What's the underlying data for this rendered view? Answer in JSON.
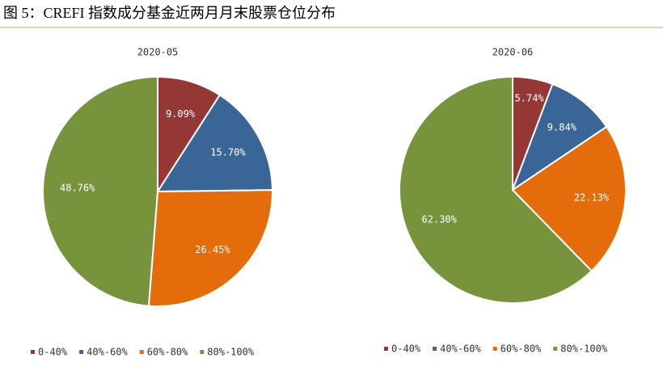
{
  "title": "图 5：CREFI 指数成分基金近两月月末股票仓位分布",
  "chart_data": [
    {
      "type": "pie",
      "title": "2020-05",
      "categories": [
        "0-40%",
        "40%-60%",
        "60%-80%",
        "80%-100%"
      ],
      "values": [
        9.09,
        15.7,
        26.45,
        48.76
      ],
      "value_labels": [
        "9.09%",
        "15.70%",
        "26.45%",
        "48.76%"
      ],
      "colors": [
        "#953735",
        "#3a6597",
        "#e46c0a",
        "#77933c"
      ]
    },
    {
      "type": "pie",
      "title": "2020-06",
      "categories": [
        "0-40%",
        "40%-60%",
        "60%-80%",
        "80%-100%"
      ],
      "values": [
        5.74,
        9.84,
        22.13,
        62.3
      ],
      "value_labels": [
        "5.74%",
        "9.84%",
        "22.13%",
        "62.30%"
      ],
      "colors": [
        "#953735",
        "#3a6597",
        "#e46c0a",
        "#77933c"
      ]
    }
  ]
}
